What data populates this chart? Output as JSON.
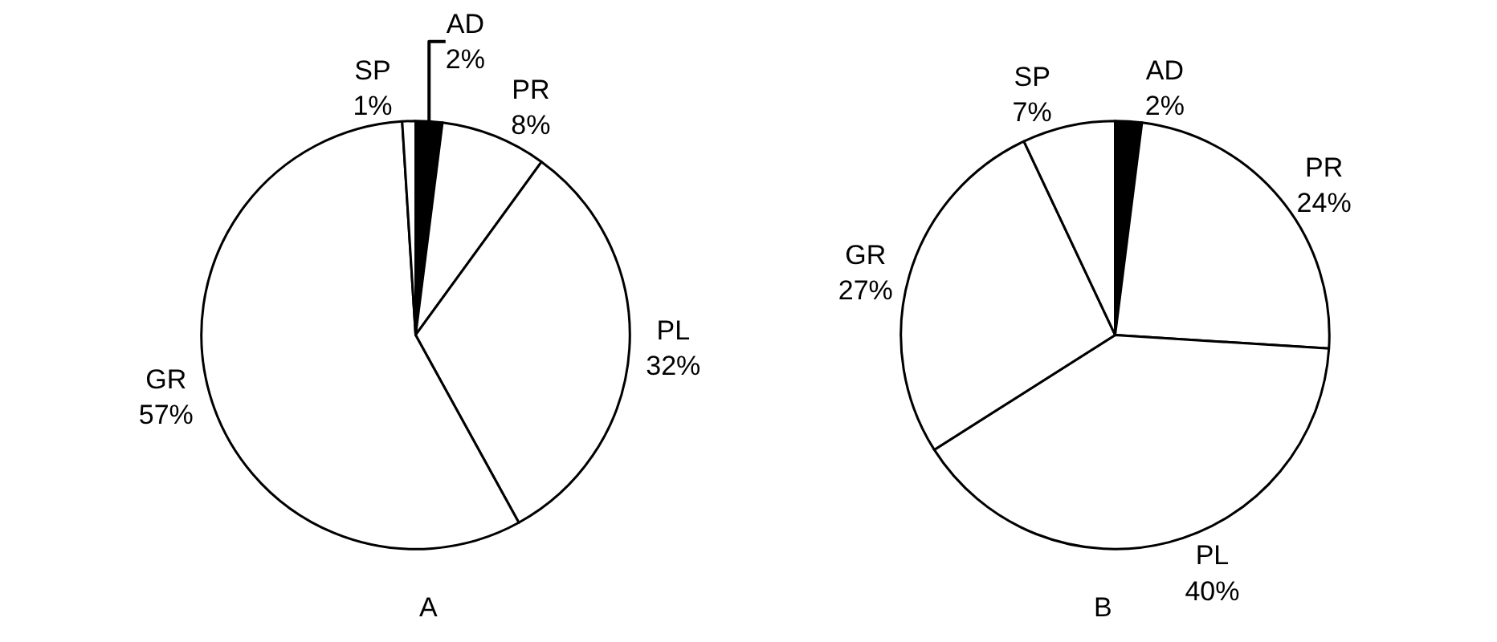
{
  "chart_data": [
    {
      "type": "pie",
      "title": "A",
      "categories": [
        "AD",
        "PR",
        "PL",
        "GR",
        "SP"
      ],
      "values": [
        2,
        8,
        32,
        57,
        1
      ],
      "value_labels": [
        "2%",
        "8%",
        "32%",
        "57%",
        "1%"
      ],
      "colors": [
        "#000000",
        "#ffffff",
        "#ffffff",
        "#ffffff",
        "#ffffff"
      ],
      "legend": false
    },
    {
      "type": "pie",
      "title": "B",
      "categories": [
        "AD",
        "PR",
        "PL",
        "GR",
        "SP"
      ],
      "values": [
        2,
        24,
        40,
        27,
        7
      ],
      "value_labels": [
        "2%",
        "24%",
        "40%",
        "27%",
        "7%"
      ],
      "colors": [
        "#000000",
        "#ffffff",
        "#ffffff",
        "#ffffff",
        "#ffffff"
      ],
      "legend": false
    }
  ]
}
